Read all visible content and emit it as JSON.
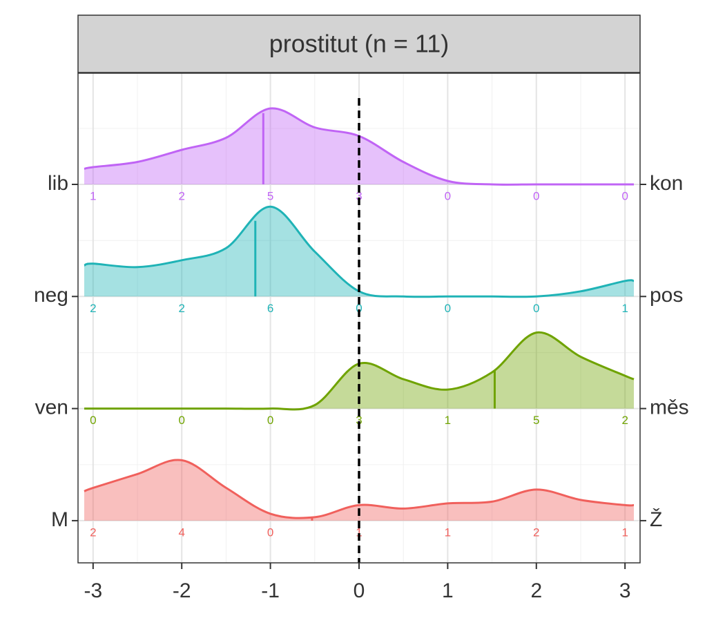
{
  "chart_data": {
    "type": "ridgeline",
    "title": "prostitut (n = 11)",
    "xlim": [
      -3.17,
      3.17
    ],
    "xticks": [
      -3,
      -2,
      -1,
      0,
      1,
      2,
      3
    ],
    "grid": true,
    "reference_x": 0,
    "density_x": [
      -3.1,
      -3,
      -2.5,
      -2,
      -1.5,
      -1,
      -0.5,
      0,
      0.5,
      1,
      1.5,
      2,
      2.5,
      3,
      3.1
    ],
    "rows": [
      {
        "left_label": "lib",
        "right_label": "kon",
        "color": "#c064f5",
        "counts": [
          1,
          2,
          5,
          3,
          0,
          0,
          0
        ],
        "mean": -1.08,
        "density": [
          0.09,
          0.1,
          0.13,
          0.2,
          0.27,
          0.44,
          0.33,
          0.28,
          0.13,
          0.02,
          0,
          0,
          0,
          0,
          0
        ]
      },
      {
        "left_label": "neg",
        "right_label": "pos",
        "color": "#1fb3b6",
        "counts": [
          2,
          2,
          6,
          0,
          0,
          0,
          1
        ],
        "mean": -1.17,
        "density": [
          0.18,
          0.19,
          0.17,
          0.21,
          0.28,
          0.52,
          0.26,
          0.03,
          0,
          0,
          0,
          0,
          0.03,
          0.09,
          0.09
        ]
      },
      {
        "left_label": "ven",
        "right_label": "měs",
        "color": "#6fa300",
        "counts": [
          0,
          0,
          0,
          3,
          1,
          5,
          2
        ],
        "mean": 1.53,
        "density": [
          0,
          0,
          0,
          0,
          0,
          0,
          0.02,
          0.26,
          0.17,
          0.11,
          0.21,
          0.44,
          0.3,
          0.19,
          0.17
        ]
      },
      {
        "left_label": "M",
        "right_label": "Ž",
        "color": "#f0605c",
        "counts": [
          2,
          4,
          0,
          1,
          1,
          2,
          1
        ],
        "mean": -0.53,
        "density": [
          0.17,
          0.19,
          0.27,
          0.35,
          0.19,
          0.04,
          0.02,
          0.09,
          0.07,
          0.1,
          0.11,
          0.18,
          0.12,
          0.09,
          0.09
        ]
      }
    ]
  }
}
